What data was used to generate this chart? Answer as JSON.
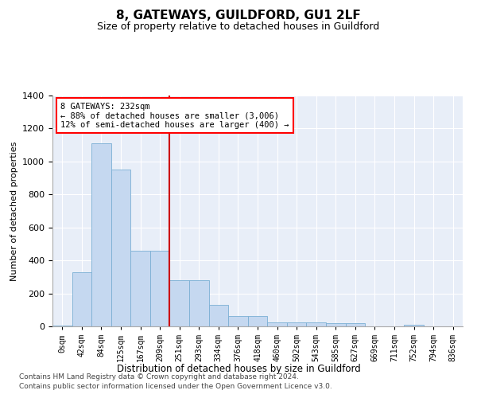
{
  "title": "8, GATEWAYS, GUILDFORD, GU1 2LF",
  "subtitle": "Size of property relative to detached houses in Guildford",
  "xlabel": "Distribution of detached houses by size in Guildford",
  "ylabel": "Number of detached properties",
  "footer_line1": "Contains HM Land Registry data © Crown copyright and database right 2024.",
  "footer_line2": "Contains public sector information licensed under the Open Government Licence v3.0.",
  "annotation_line1": "8 GATEWAYS: 232sqm",
  "annotation_line2": "← 88% of detached houses are smaller (3,006)",
  "annotation_line3": "12% of semi-detached houses are larger (400) →",
  "vline_x_index": 5.5,
  "bar_color": "#c5d8f0",
  "bar_edge_color": "#7bafd4",
  "vline_color": "#cc0000",
  "background_color": "#e8eef8",
  "ylim": [
    0,
    1400
  ],
  "yticks": [
    0,
    200,
    400,
    600,
    800,
    1000,
    1200,
    1400
  ],
  "categories": [
    "0sqm",
    "42sqm",
    "84sqm",
    "125sqm",
    "167sqm",
    "209sqm",
    "251sqm",
    "293sqm",
    "334sqm",
    "376sqm",
    "418sqm",
    "460sqm",
    "502sqm",
    "543sqm",
    "585sqm",
    "627sqm",
    "669sqm",
    "711sqm",
    "752sqm",
    "794sqm",
    "836sqm"
  ],
  "values": [
    5,
    330,
    1110,
    950,
    460,
    460,
    280,
    280,
    130,
    65,
    65,
    25,
    25,
    25,
    20,
    20,
    0,
    0,
    10,
    0,
    0
  ]
}
